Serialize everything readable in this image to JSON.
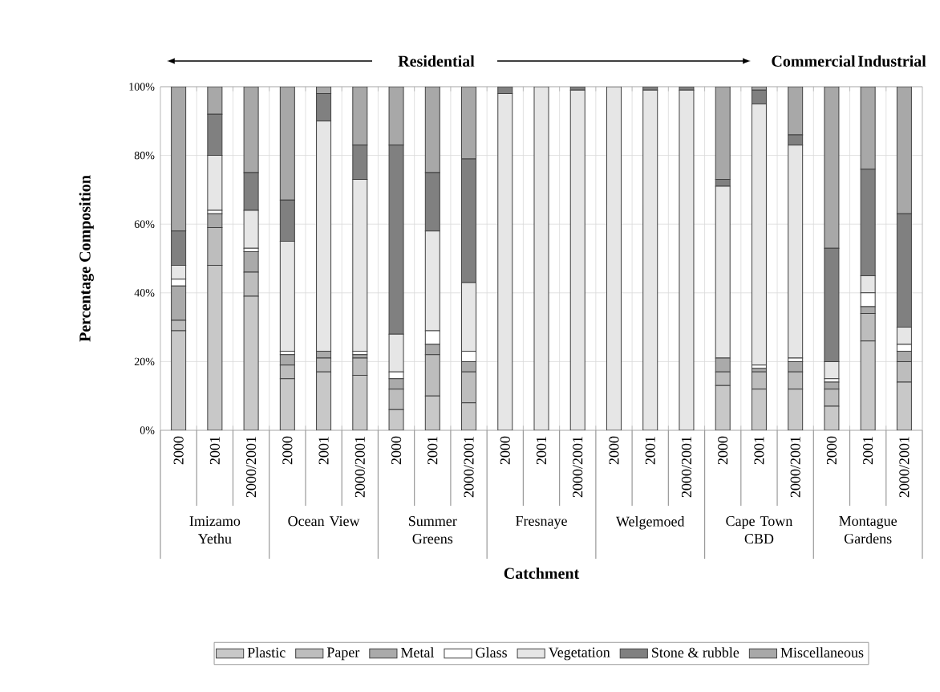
{
  "chart_data": {
    "type": "bar",
    "stacked": true,
    "xlabel": "Catchment",
    "ylabel": "Percentage Composition",
    "categories": [
      "2000",
      "2001",
      "2000/2001",
      "2000",
      "2001",
      "2000/2001",
      "2000",
      "2001",
      "2000/2001",
      "2000",
      "2001",
      "2000/2001",
      "2000",
      "2001",
      "2000/2001",
      "2000",
      "2001",
      "2000/2001",
      "2000",
      "2001",
      "2000/2001"
    ],
    "series": [
      {
        "name": "Plastic",
        "color": "#c8c8c8",
        "values": [
          29,
          48,
          39,
          15,
          17,
          16,
          6,
          10,
          8,
          0,
          0,
          0,
          0,
          0,
          0,
          13,
          12,
          12,
          7,
          26,
          14
        ]
      },
      {
        "name": "Paper",
        "color": "#bdbdbd",
        "values": [
          3,
          11,
          7,
          4,
          4,
          5,
          6,
          12,
          9,
          0,
          0,
          0,
          0,
          0,
          0,
          4,
          5,
          5,
          5,
          8,
          6
        ]
      },
      {
        "name": "Metal",
        "color": "#aaaaaa",
        "values": [
          10,
          4,
          6,
          3,
          2,
          1,
          3,
          3,
          3,
          0,
          0,
          0,
          0,
          0,
          0,
          4,
          1,
          3,
          2,
          2,
          3
        ]
      },
      {
        "name": "Glass",
        "color": "#ffffff",
        "values": [
          2,
          1,
          1,
          1,
          0,
          1,
          2,
          4,
          3,
          0,
          0,
          0,
          0,
          0,
          0,
          0,
          1,
          1,
          1,
          4,
          2
        ]
      },
      {
        "name": "Vegetation",
        "color": "#e6e6e6",
        "values": [
          4,
          16,
          11,
          32,
          67,
          50,
          11,
          29,
          20,
          98,
          100,
          99,
          100,
          99,
          99,
          50,
          76,
          62,
          5,
          5,
          5
        ]
      },
      {
        "name": "Stone & rubble",
        "color": "#808080",
        "values": [
          10,
          12,
          11,
          12,
          8,
          10,
          55,
          17,
          36,
          2,
          0,
          1,
          0,
          1,
          1,
          2,
          4,
          3,
          33,
          31,
          33
        ]
      },
      {
        "name": "Miscellaneous",
        "color": "#a8a8a8",
        "values": [
          42,
          8,
          25,
          33,
          2,
          17,
          17,
          25,
          21,
          0,
          0,
          0,
          0,
          0,
          0,
          27,
          1,
          14,
          47,
          24,
          37
        ]
      }
    ],
    "ylim": [
      0,
      100
    ],
    "yticks": [
      {
        "value": 0,
        "label": "0%"
      },
      {
        "value": 20,
        "label": "20%"
      },
      {
        "value": 40,
        "label": "40%"
      },
      {
        "value": 60,
        "label": "60%"
      },
      {
        "value": 80,
        "label": "80%"
      },
      {
        "value": 100,
        "label": "100%"
      }
    ],
    "grid": true,
    "legend": "bottom",
    "annotations": [
      "Imizamo Yethu",
      "Ocean View",
      "Summer Greens",
      "Fresnaye",
      "Welgemoed",
      "Cape Town CBD",
      "Montague Gardens",
      "Residential",
      "Commercial",
      "Industrial"
    ]
  }
}
